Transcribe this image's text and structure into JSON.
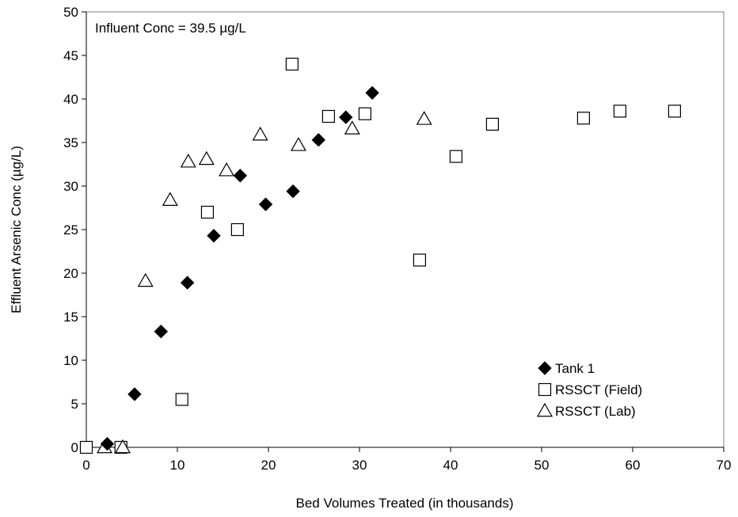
{
  "chart_data": {
    "type": "scatter",
    "title": "",
    "xlabel": "Bed Volumes Treated (in thousands)",
    "ylabel": "Effluent Arsenic Conc (µg/L)",
    "xlim": [
      0,
      70
    ],
    "ylim": [
      0,
      50
    ],
    "x_ticks": [
      0,
      10,
      20,
      30,
      40,
      50,
      60,
      70
    ],
    "y_ticks": [
      0,
      5,
      10,
      15,
      20,
      25,
      30,
      35,
      40,
      45,
      50
    ],
    "x_tick_labels": [
      "0",
      "10",
      "20",
      "30",
      "40",
      "50",
      "60",
      "70"
    ],
    "y_tick_labels": [
      "0",
      "5",
      "10",
      "15",
      "20",
      "25",
      "30",
      "35",
      "40",
      "45",
      "50"
    ],
    "grid": false,
    "legend_position": "bottom-right",
    "annotation": "Influent Conc = 39.5 µg/L",
    "series": [
      {
        "name": "Tank 1",
        "marker": "diamond-filled",
        "color": "#000000",
        "points": [
          [
            2.3,
            0.4
          ],
          [
            5.3,
            6.1
          ],
          [
            8.2,
            13.3
          ],
          [
            11.1,
            18.9
          ],
          [
            14.0,
            24.3
          ],
          [
            16.9,
            31.2
          ],
          [
            19.7,
            27.9
          ],
          [
            22.7,
            29.4
          ],
          [
            25.5,
            35.3
          ],
          [
            28.5,
            37.9
          ],
          [
            31.4,
            40.7
          ]
        ]
      },
      {
        "name": "RSSCT (Field)",
        "marker": "square-open",
        "color": "#000000",
        "points": [
          [
            0.0,
            0.0
          ],
          [
            3.8,
            0.0
          ],
          [
            10.5,
            5.5
          ],
          [
            13.3,
            27.0
          ],
          [
            16.6,
            25.0
          ],
          [
            22.6,
            44.0
          ],
          [
            26.6,
            38.0
          ],
          [
            30.6,
            38.3
          ],
          [
            36.6,
            21.5
          ],
          [
            40.6,
            33.4
          ],
          [
            44.6,
            37.1
          ],
          [
            54.6,
            37.8
          ],
          [
            58.6,
            38.6
          ],
          [
            64.6,
            38.6
          ]
        ]
      },
      {
        "name": "RSSCT (Lab)",
        "marker": "triangle-open",
        "color": "#000000",
        "points": [
          [
            2.0,
            0.0
          ],
          [
            4.0,
            0.0
          ],
          [
            6.5,
            19.1
          ],
          [
            9.2,
            28.4
          ],
          [
            11.2,
            32.8
          ],
          [
            13.2,
            33.1
          ],
          [
            15.4,
            31.8
          ],
          [
            19.1,
            35.9
          ],
          [
            23.3,
            34.7
          ],
          [
            29.2,
            36.6
          ],
          [
            37.1,
            37.7
          ]
        ]
      }
    ]
  }
}
